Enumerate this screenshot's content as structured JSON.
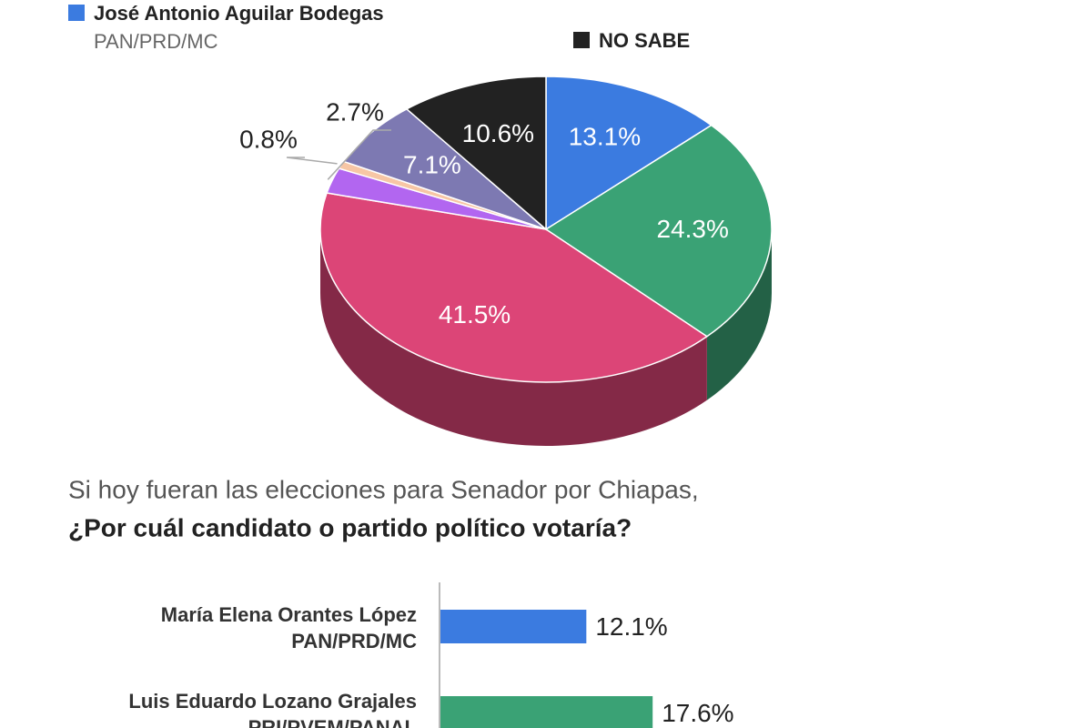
{
  "chart_data": [
    {
      "type": "pie",
      "categories": [
        "José Antonio Aguilar Bodegas",
        null,
        null,
        null,
        null,
        null,
        "NO SABE"
      ],
      "parties": [
        "PAN/PRD/MC",
        null,
        null,
        null,
        null,
        null,
        null
      ],
      "values": [
        13.1,
        24.3,
        41.5,
        2.7,
        0.8,
        7.1,
        10.6
      ],
      "value_labels": [
        "13.1%",
        "24.3%",
        "41.5%",
        "2.7%",
        "0.8%",
        "7.1%",
        "10.6%"
      ],
      "colors": [
        "#3b7be0",
        "#3aa275",
        "#dc4577",
        "#b266f0",
        "#f7c6a5",
        "#7d79b2",
        "#222222"
      ]
    },
    {
      "type": "bar",
      "title": "Si hoy fueran las elecciones para Senador por Chiapas,",
      "subtitle": "¿Por cuál candidato o partido político votaría?",
      "categories": [
        "María Elena Orantes López",
        "Luis Eduardo Lozano Grajales"
      ],
      "parties": [
        "PAN/PRD/MC",
        "PRI/PVEM/PANAL"
      ],
      "values": [
        12.1,
        17.6
      ],
      "value_labels": [
        "12.1%",
        "17.6%"
      ],
      "colors": [
        "#3b7be0",
        "#3aa275"
      ]
    }
  ]
}
